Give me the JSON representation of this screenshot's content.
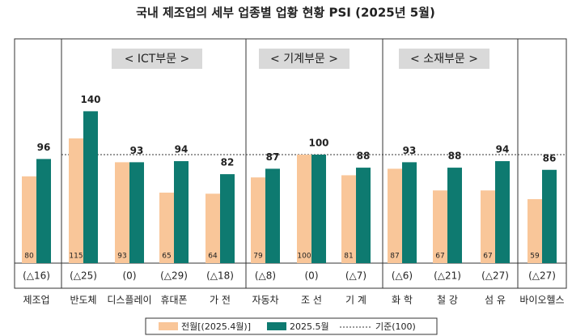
{
  "chart_data": {
    "type": "bar",
    "title": "국내 제조업의 세부 업종별 업황 현황 PSI (2025년 5월)",
    "groups": [
      "< ICT부문 >",
      "< 기계부문 >",
      "< 소재부문 >"
    ],
    "categories": [
      "제조업",
      "반도체",
      "디스플레이",
      "휴대폰",
      "가 전",
      "자동차",
      "조 선",
      "기 계",
      "화 학",
      "철 강",
      "섬 유",
      "바이오헬스"
    ],
    "changes": [
      "(△16)",
      "(△25)",
      "(0)",
      "(△29)",
      "(△18)",
      "(△8)",
      "(0)",
      "(△7)",
      "(△6)",
      "(△21)",
      "(△27)",
      "(△27)"
    ],
    "series": [
      {
        "name": "전월[(2025.4월)]",
        "color": "#f9c699",
        "values": [
          80,
          115,
          93,
          65,
          64,
          79,
          100,
          81,
          87,
          67,
          67,
          59
        ]
      },
      {
        "name": "2025.5월",
        "color": "#0e7a70",
        "values": [
          96,
          140,
          93,
          94,
          82,
          87,
          100,
          88,
          93,
          88,
          94,
          86
        ]
      }
    ],
    "reference": {
      "name": "기준(100)",
      "value": 100
    }
  }
}
